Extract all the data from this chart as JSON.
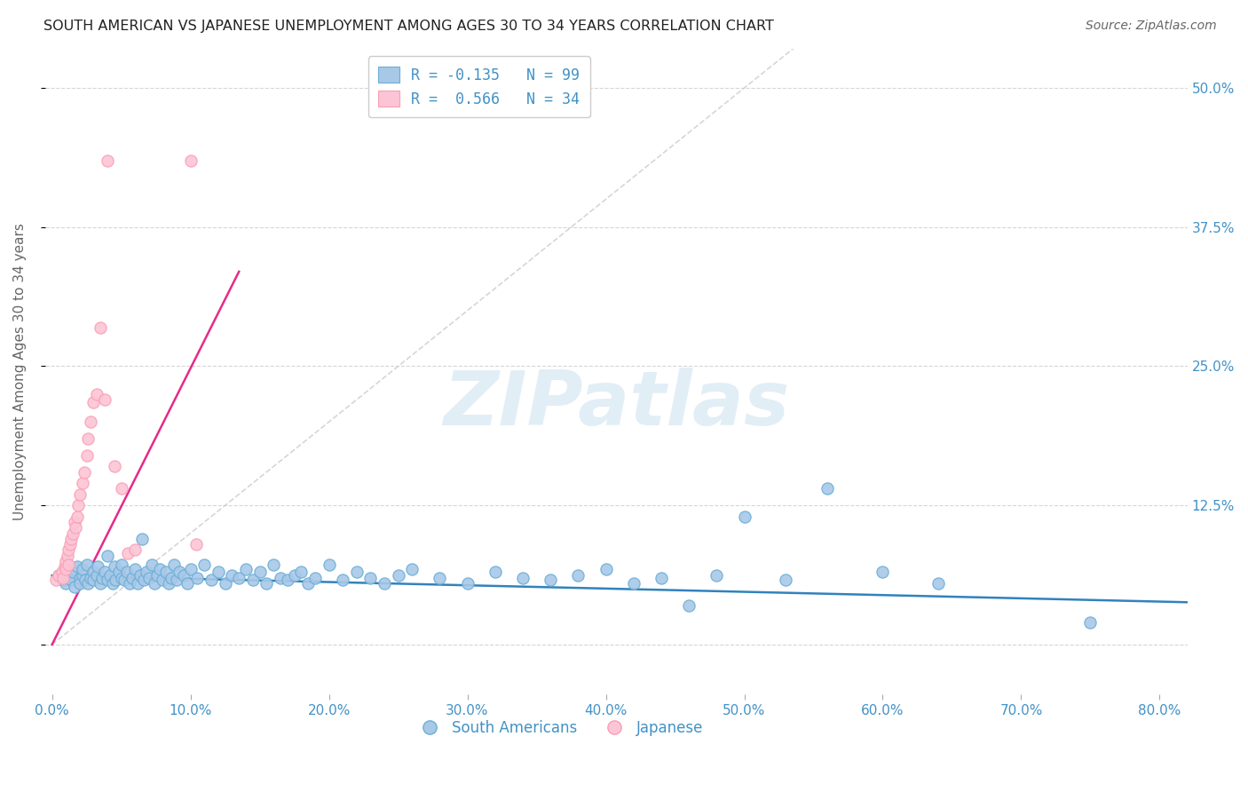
{
  "title": "SOUTH AMERICAN VS JAPANESE UNEMPLOYMENT AMONG AGES 30 TO 34 YEARS CORRELATION CHART",
  "source": "Source: ZipAtlas.com",
  "ylabel": "Unemployment Among Ages 30 to 34 years",
  "xlim": [
    -0.005,
    0.82
  ],
  "ylim": [
    -0.045,
    0.535
  ],
  "xtick_vals": [
    0.0,
    0.1,
    0.2,
    0.3,
    0.4,
    0.5,
    0.6,
    0.7,
    0.8
  ],
  "xtick_labels": [
    "0.0%",
    "10.0%",
    "20.0%",
    "30.0%",
    "40.0%",
    "50.0%",
    "60.0%",
    "70.0%",
    "80.0%"
  ],
  "ytick_vals": [
    0.0,
    0.125,
    0.25,
    0.375,
    0.5
  ],
  "ytick_labels": [
    "",
    "12.5%",
    "25.0%",
    "37.5%",
    "50.0%"
  ],
  "blue_scatter_color": "#a8c8e8",
  "blue_edge_color": "#6baed6",
  "pink_scatter_color": "#fcc5d5",
  "pink_edge_color": "#fa9fb5",
  "trend_blue_color": "#3182bd",
  "trend_pink_color": "#e7298a",
  "diag_color": "#cccccc",
  "axis_label_color": "#4292c6",
  "ylabel_color": "#666666",
  "title_color": "#222222",
  "source_color": "#666666",
  "watermark_color": "#d0e4f0",
  "watermark_text": "ZIPatlas",
  "legend_top_labels": [
    "R = -0.135   N = 99",
    "R =  0.566   N = 34"
  ],
  "legend_bottom_labels": [
    "South Americans",
    "Japanese"
  ],
  "grid_color": "#cccccc",
  "blue_trend_x": [
    0.0,
    0.82
  ],
  "blue_trend_y": [
    0.062,
    0.038
  ],
  "pink_trend_x": [
    0.0,
    0.135
  ],
  "pink_trend_y": [
    0.0,
    0.335
  ],
  "blue_x": [
    0.005,
    0.008,
    0.01,
    0.012,
    0.014,
    0.015,
    0.016,
    0.018,
    0.02,
    0.02,
    0.022,
    0.022,
    0.024,
    0.025,
    0.026,
    0.028,
    0.03,
    0.03,
    0.032,
    0.033,
    0.035,
    0.036,
    0.038,
    0.04,
    0.04,
    0.042,
    0.044,
    0.045,
    0.046,
    0.048,
    0.05,
    0.05,
    0.052,
    0.054,
    0.056,
    0.058,
    0.06,
    0.062,
    0.064,
    0.065,
    0.066,
    0.068,
    0.07,
    0.072,
    0.074,
    0.076,
    0.078,
    0.08,
    0.082,
    0.084,
    0.086,
    0.088,
    0.09,
    0.092,
    0.095,
    0.098,
    0.1,
    0.105,
    0.11,
    0.115,
    0.12,
    0.125,
    0.13,
    0.135,
    0.14,
    0.145,
    0.15,
    0.155,
    0.16,
    0.165,
    0.17,
    0.175,
    0.18,
    0.185,
    0.19,
    0.2,
    0.21,
    0.22,
    0.23,
    0.24,
    0.25,
    0.26,
    0.28,
    0.3,
    0.32,
    0.34,
    0.36,
    0.38,
    0.4,
    0.42,
    0.44,
    0.46,
    0.48,
    0.5,
    0.53,
    0.56,
    0.6,
    0.64,
    0.75
  ],
  "blue_y": [
    0.062,
    0.058,
    0.055,
    0.06,
    0.058,
    0.065,
    0.052,
    0.07,
    0.06,
    0.055,
    0.062,
    0.068,
    0.058,
    0.072,
    0.055,
    0.06,
    0.065,
    0.058,
    0.062,
    0.07,
    0.055,
    0.06,
    0.065,
    0.058,
    0.08,
    0.062,
    0.055,
    0.07,
    0.058,
    0.065,
    0.06,
    0.072,
    0.058,
    0.065,
    0.055,
    0.06,
    0.068,
    0.055,
    0.062,
    0.095,
    0.058,
    0.065,
    0.06,
    0.072,
    0.055,
    0.062,
    0.068,
    0.058,
    0.065,
    0.055,
    0.06,
    0.072,
    0.058,
    0.065,
    0.062,
    0.055,
    0.068,
    0.06,
    0.072,
    0.058,
    0.065,
    0.055,
    0.062,
    0.06,
    0.068,
    0.058,
    0.065,
    0.055,
    0.072,
    0.06,
    0.058,
    0.062,
    0.065,
    0.055,
    0.06,
    0.072,
    0.058,
    0.065,
    0.06,
    0.055,
    0.062,
    0.068,
    0.06,
    0.055,
    0.065,
    0.06,
    0.058,
    0.062,
    0.068,
    0.055,
    0.06,
    0.035,
    0.062,
    0.115,
    0.058,
    0.14,
    0.065,
    0.055,
    0.02
  ],
  "pink_x": [
    0.003,
    0.005,
    0.007,
    0.008,
    0.009,
    0.01,
    0.01,
    0.011,
    0.012,
    0.012,
    0.013,
    0.014,
    0.015,
    0.016,
    0.017,
    0.018,
    0.019,
    0.02,
    0.022,
    0.023,
    0.025,
    0.026,
    0.028,
    0.03,
    0.032,
    0.035,
    0.038,
    0.04,
    0.045,
    0.05,
    0.055,
    0.06,
    0.1,
    0.104
  ],
  "pink_y": [
    0.058,
    0.062,
    0.065,
    0.06,
    0.07,
    0.075,
    0.068,
    0.08,
    0.085,
    0.072,
    0.09,
    0.095,
    0.1,
    0.11,
    0.105,
    0.115,
    0.125,
    0.135,
    0.145,
    0.155,
    0.17,
    0.185,
    0.2,
    0.218,
    0.225,
    0.285,
    0.22,
    0.435,
    0.16,
    0.14,
    0.082,
    0.085,
    0.435,
    0.09
  ]
}
